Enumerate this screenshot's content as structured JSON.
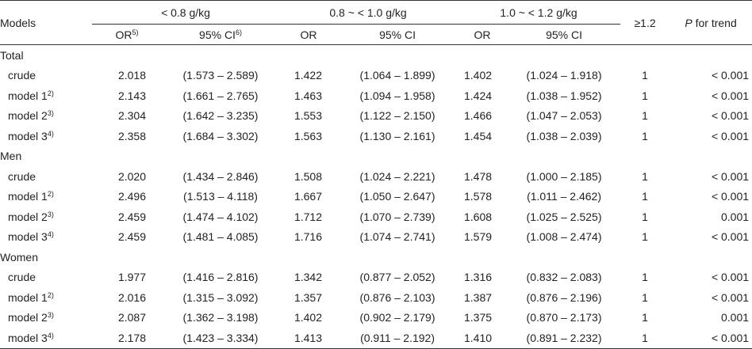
{
  "header": {
    "models": "Models",
    "groups": [
      "< 0.8 g/kg",
      "0.8 ~ < 1.0 g/kg",
      "1.0 ~ < 1.2 g/kg"
    ],
    "ref": "≥1.2",
    "p_italic": "P",
    "p_rest": " for trend",
    "sub": {
      "or_first": "OR",
      "or_first_sup": "5)",
      "ci_first": "95% CI",
      "ci_first_sup": "6)",
      "or": "OR",
      "ci": "95% CI"
    }
  },
  "sections": [
    {
      "label": "Total",
      "rows": [
        {
          "model": "crude",
          "sup": "",
          "or1": "2.018",
          "ci1": "(1.573 – 2.589)",
          "or2": "1.422",
          "ci2": "(1.064 – 1.899)",
          "or3": "1.402",
          "ci3": "(1.024 – 1.918)",
          "ref": "1",
          "p": "< 0.001"
        },
        {
          "model": "model 1",
          "sup": "2)",
          "or1": "2.143",
          "ci1": "(1.661 – 2.765)",
          "or2": "1.463",
          "ci2": "(1.094 – 1.958)",
          "or3": "1.424",
          "ci3": "(1.038 – 1.952)",
          "ref": "1",
          "p": "< 0.001"
        },
        {
          "model": "model 2",
          "sup": "3)",
          "or1": "2.304",
          "ci1": "(1.642 – 3.235)",
          "or2": "1.553",
          "ci2": "(1.122 – 2.150)",
          "or3": "1.466",
          "ci3": "(1.047 – 2.053)",
          "ref": "1",
          "p": "< 0.001"
        },
        {
          "model": "model 3",
          "sup": "4)",
          "or1": "2.358",
          "ci1": "(1.684 – 3.302)",
          "or2": "1.563",
          "ci2": "(1.130 – 2.161)",
          "or3": "1.454",
          "ci3": "(1.038 – 2.039)",
          "ref": "1",
          "p": "< 0.001"
        }
      ]
    },
    {
      "label": "Men",
      "rows": [
        {
          "model": "crude",
          "sup": "",
          "or1": "2.020",
          "ci1": "(1.434 – 2.846)",
          "or2": "1.508",
          "ci2": "(1.024 – 2.221)",
          "or3": "1.478",
          "ci3": "(1.000 – 2.185)",
          "ref": "1",
          "p": "< 0.001"
        },
        {
          "model": "model 1",
          "sup": "2)",
          "or1": "2.496",
          "ci1": "(1.513 – 4.118)",
          "or2": "1.667",
          "ci2": "(1.050 – 2.647)",
          "or3": "1.578",
          "ci3": "(1.011 – 2.462)",
          "ref": "1",
          "p": "< 0.001"
        },
        {
          "model": "model 2",
          "sup": "3)",
          "or1": "2.459",
          "ci1": "(1.474 – 4.102)",
          "or2": "1.712",
          "ci2": "(1.070 – 2.739)",
          "or3": "1.608",
          "ci3": "(1.025 – 2.525)",
          "ref": "1",
          "p": "0.001"
        },
        {
          "model": "model 3",
          "sup": "4)",
          "or1": "2.459",
          "ci1": "(1.481 – 4.085)",
          "or2": "1.716",
          "ci2": "(1.074 – 2.741)",
          "or3": "1.579",
          "ci3": "(1.008 – 2.474)",
          "ref": "1",
          "p": "< 0.001"
        }
      ]
    },
    {
      "label": "Women",
      "rows": [
        {
          "model": "crude",
          "sup": "",
          "or1": "1.977",
          "ci1": "(1.416 – 2.816)",
          "or2": "1.342",
          "ci2": "(0.877 – 2.052)",
          "or3": "1.316",
          "ci3": "(0.832 – 2.083)",
          "ref": "1",
          "p": "< 0.001"
        },
        {
          "model": "model 1",
          "sup": "2)",
          "or1": "2.016",
          "ci1": "(1.315 – 3.092)",
          "or2": "1.357",
          "ci2": "(0.876 – 2.103)",
          "or3": "1.387",
          "ci3": "(0.876 – 2.196)",
          "ref": "1",
          "p": "< 0.001"
        },
        {
          "model": "model 2",
          "sup": "3)",
          "or1": "2.087",
          "ci1": "(1.362 – 3.198)",
          "or2": "1.402",
          "ci2": "(0.902 – 2.179)",
          "or3": "1.375",
          "ci3": "(0.870 – 2.173)",
          "ref": "1",
          "p": "0.001"
        },
        {
          "model": "model 3",
          "sup": "4)",
          "or1": "2.178",
          "ci1": "(1.423 – 3.334)",
          "or2": "1.413",
          "ci2": "(0.911 – 2.192)",
          "or3": "1.410",
          "ci3": "(0.891 – 2.232)",
          "ref": "1",
          "p": "< 0.001"
        }
      ]
    }
  ]
}
